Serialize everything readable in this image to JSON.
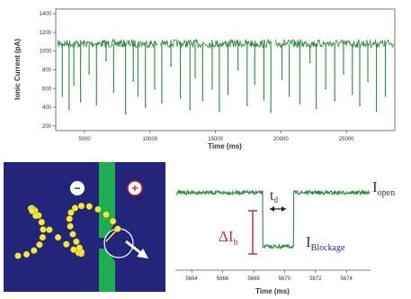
{
  "chart_data": [
    {
      "type": "line",
      "title": "",
      "xlabel": "Time (ms)",
      "ylabel": "Ionic Current (pA)",
      "x_ticks": [
        "5000",
        "10000",
        "15000",
        "20000",
        "25000"
      ],
      "y_ticks": [
        "1400",
        "1200",
        "1000",
        "800",
        "600",
        "400",
        "200"
      ],
      "xlim": [
        2800,
        28700
      ],
      "ylim": [
        150,
        1450
      ],
      "baseline_pA": 1080,
      "blockade_events_ms": [
        3300,
        3820,
        4180,
        4700,
        5350,
        5910,
        6650,
        7220,
        8130,
        8720,
        9080,
        9650,
        10350,
        10900,
        11600,
        12320,
        13050,
        13450,
        14020,
        14750,
        15300,
        15960,
        16720,
        17420,
        18000,
        18700,
        19230,
        20080,
        20640,
        21450,
        22220,
        22700,
        23420,
        24110,
        24780,
        25460,
        26020,
        26640,
        27300,
        27980
      ],
      "blockade_levels_pA": [
        520,
        380,
        640,
        460,
        760,
        430,
        900,
        560,
        330,
        680,
        520,
        400,
        600,
        450,
        840,
        500,
        380,
        720,
        470,
        600,
        360,
        540,
        800,
        420,
        650,
        480,
        350,
        700,
        520,
        440,
        880,
        390,
        600,
        470,
        760,
        540,
        420,
        680,
        360,
        520
      ],
      "gaps_ms": [
        10700,
        19400
      ],
      "color": "#2e8b3e"
    },
    {
      "type": "line",
      "title": "",
      "xlabel": "Time (ms)",
      "x_ticks": [
        "5664",
        "5666",
        "5668",
        "5670",
        "5672",
        "5674"
      ],
      "xlim": [
        5663,
        5675.5
      ],
      "ylim": [
        0,
        1
      ],
      "baseline_level": 0.82,
      "blockage_level": 0.25,
      "event_start_ms": 5668.6,
      "event_end_ms": 5670.6,
      "color": "#2e8b3e"
    }
  ],
  "annotations": {
    "delta_i": "ΔI",
    "delta_i_sub": "b",
    "t_d": "t",
    "t_d_sub": "d",
    "i_open": "I",
    "i_open_sub": "open",
    "i_blockage": "I",
    "i_blockage_sub": "Blockage"
  },
  "schematic": {
    "minus_label": "−",
    "plus_label": "+",
    "background_color": "#22257a",
    "membrane_color": "#1fae4f",
    "bead_color": "#f4e83a"
  }
}
